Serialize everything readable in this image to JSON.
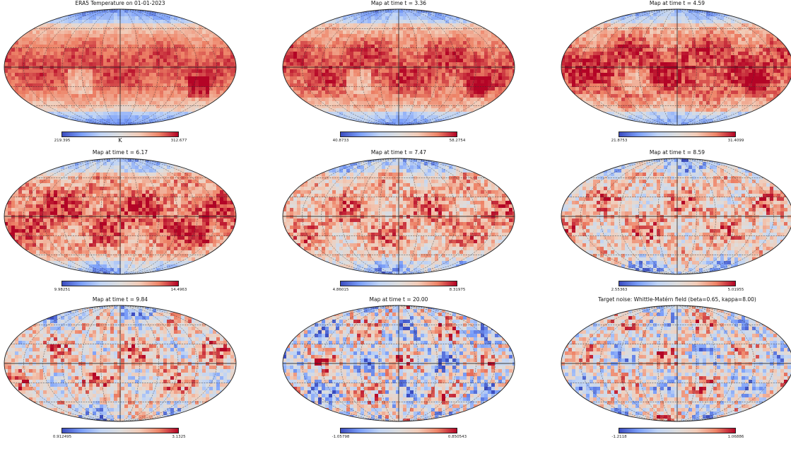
{
  "figure": {
    "colormap": "coolwarm",
    "colormap_stops": [
      "#3b4cc0",
      "#7b9ff9",
      "#c0d4f5",
      "#dddddd",
      "#f2cbb7",
      "#ee8468",
      "#b40426"
    ],
    "panels": [
      {
        "title": "ERA5 Temperature on 01-01-2023",
        "cmin": "219.395",
        "cmax": "312.677",
        "unit": "K",
        "mean": 0.68,
        "roughness": 0.12,
        "lat_trend": 1.0,
        "seed": 11,
        "land": true
      },
      {
        "title": "Map at time t = 3.36",
        "cmin": "40.8733",
        "cmax": "58.2754",
        "unit": "",
        "mean": 0.7,
        "roughness": 0.16,
        "lat_trend": 0.95,
        "seed": 23,
        "land": true
      },
      {
        "title": "Map at time t = 4.59",
        "cmin": "21.8753",
        "cmax": "31.4099",
        "unit": "",
        "mean": 0.72,
        "roughness": 0.2,
        "lat_trend": 0.9,
        "seed": 37,
        "land": true
      },
      {
        "title": "Map at time t = 6.17",
        "cmin": "9.98251",
        "cmax": "14.4963",
        "unit": "",
        "mean": 0.7,
        "roughness": 0.28,
        "lat_trend": 0.8,
        "seed": 41,
        "land": true
      },
      {
        "title": "Map at time t = 7.47",
        "cmin": "4.86015",
        "cmax": "8.31975",
        "unit": "",
        "mean": 0.62,
        "roughness": 0.38,
        "lat_trend": 0.6,
        "seed": 53,
        "land": false
      },
      {
        "title": "Map at time t = 8.59",
        "cmin": "2.55363",
        "cmax": "5.01955",
        "unit": "",
        "mean": 0.58,
        "roughness": 0.46,
        "lat_trend": 0.45,
        "seed": 67,
        "land": false
      },
      {
        "title": "Map at time t = 9.84",
        "cmin": "0.912495",
        "cmax": "3.1325",
        "unit": "",
        "mean": 0.55,
        "roughness": 0.55,
        "lat_trend": 0.3,
        "seed": 79,
        "land": false
      },
      {
        "title": "Map at time t = 20.00",
        "cmin": "-1.05798",
        "cmax": "0.850543",
        "unit": "",
        "mean": 0.5,
        "roughness": 0.7,
        "lat_trend": 0.0,
        "seed": 83,
        "land": false
      },
      {
        "title": "Target noise: Whittle-Matérn field (beta=0.65, kappa=8.00)",
        "cmin": "-1.2118",
        "cmax": "1.06886",
        "unit": "",
        "mean": 0.52,
        "roughness": 0.62,
        "lat_trend": 0.0,
        "seed": 97,
        "land": false
      }
    ]
  }
}
